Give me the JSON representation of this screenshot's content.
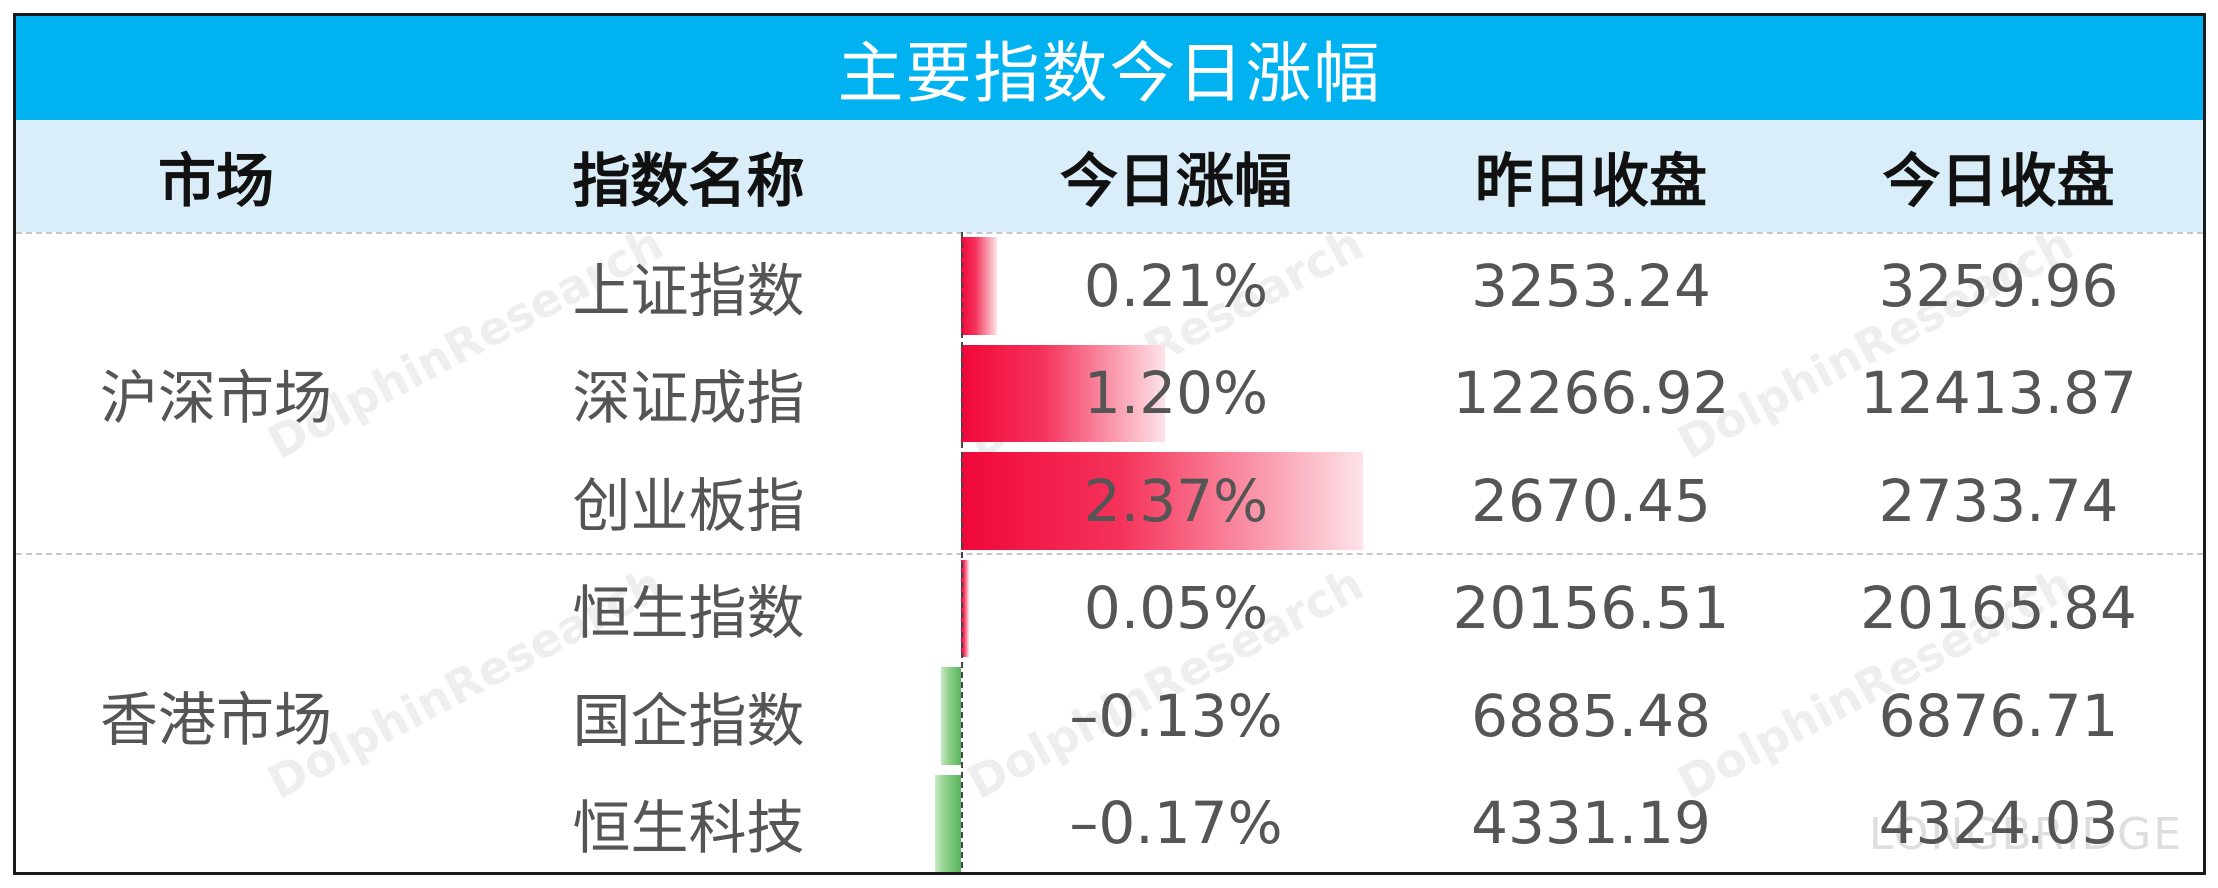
{
  "title": "主要指数今日涨幅",
  "headers": {
    "market": "市场",
    "index_name": "指数名称",
    "change": "今日涨幅",
    "prev_close": "昨日收盘",
    "today_close": "今日收盘"
  },
  "markets": {
    "shenzhen_shanghai": "沪深市场",
    "hongkong": "香港市场"
  },
  "rows": [
    {
      "name": "上证指数",
      "change": "0.21%",
      "change_value": 0.21,
      "prev": "3253.24",
      "today": "3259.96"
    },
    {
      "name": "深证成指",
      "change": "1.20%",
      "change_value": 1.2,
      "prev": "12266.92",
      "today": "12413.87"
    },
    {
      "name": "创业板指",
      "change": "2.37%",
      "change_value": 2.37,
      "prev": "2670.45",
      "today": "2733.74"
    },
    {
      "name": "恒生指数",
      "change": "0.05%",
      "change_value": 0.05,
      "prev": "20156.51",
      "today": "20165.84"
    },
    {
      "name": "国企指数",
      "change": "–0.13%",
      "change_value": -0.13,
      "prev": "6885.48",
      "today": "6876.71"
    },
    {
      "name": "恒生科技",
      "change": "–0.17%",
      "change_value": -0.17,
      "prev": "4331.19",
      "today": "4324.03"
    }
  ],
  "colors": {
    "title_bg": "#00b2f0",
    "header_bg": "#d9eef9",
    "positive": "#f0073a",
    "negative": "#58b55c"
  },
  "watermark": {
    "text": "DolphinResearch",
    "brand": "LONGBRIDGE"
  }
}
